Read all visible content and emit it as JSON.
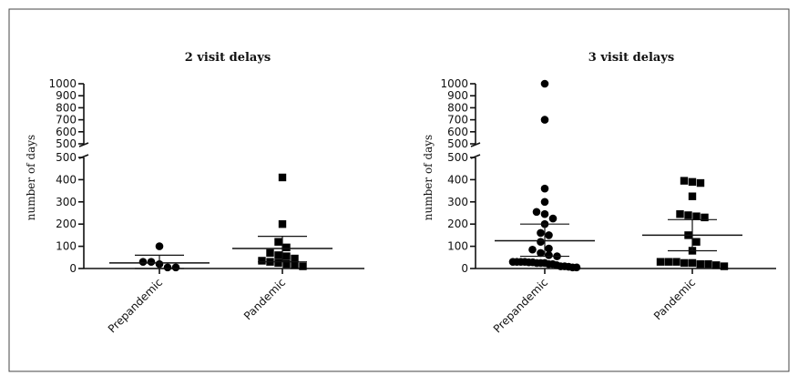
{
  "chart_data": [
    {
      "type": "scatter",
      "title": "2 visit delays",
      "ylabel": "number of days",
      "categories": [
        "Prepandemic",
        "Pandemic"
      ],
      "y_axis_break": {
        "lower_range": [
          0,
          500
        ],
        "upper_range": [
          500,
          1000
        ]
      },
      "lower_ticks": [
        0,
        100,
        200,
        300,
        400,
        500
      ],
      "upper_ticks": [
        500,
        600,
        700,
        800,
        900,
        1000
      ],
      "series": [
        {
          "category": "Prepandemic",
          "marker": "circle",
          "values": [
            100,
            30,
            20,
            5,
            5,
            30
          ],
          "mean": 25,
          "error": [
            0,
            60
          ]
        },
        {
          "category": "Pandemic",
          "marker": "square",
          "values": [
            410,
            200,
            120,
            95,
            70,
            60,
            55,
            45,
            35,
            30,
            25,
            20,
            15,
            10
          ],
          "mean": 90,
          "error": [
            30,
            145
          ]
        }
      ]
    },
    {
      "type": "scatter",
      "title": "3 visit delays",
      "ylabel": "number of days",
      "categories": [
        "Prepandemic",
        "Pandemic"
      ],
      "y_axis_break": {
        "lower_range": [
          0,
          500
        ],
        "upper_range": [
          500,
          1000
        ]
      },
      "lower_ticks": [
        0,
        100,
        200,
        300,
        400,
        500
      ],
      "upper_ticks": [
        500,
        600,
        700,
        800,
        900,
        1000
      ],
      "series": [
        {
          "category": "Prepandemic",
          "marker": "circle",
          "values": [
            1000,
            700,
            360,
            300,
            255,
            245,
            225,
            200,
            160,
            150,
            120,
            90,
            85,
            70,
            60,
            55,
            30,
            30,
            30,
            30,
            28,
            28,
            25,
            25,
            25,
            20,
            20,
            15,
            10,
            10,
            8,
            5,
            5
          ],
          "mean": 125,
          "error": [
            55,
            200
          ]
        },
        {
          "category": "Pandemic",
          "marker": "square",
          "values": [
            395,
            390,
            385,
            325,
            245,
            240,
            235,
            230,
            150,
            120,
            80,
            30,
            30,
            30,
            25,
            25,
            20,
            20,
            15,
            10
          ],
          "mean": 150,
          "error": [
            80,
            220
          ]
        }
      ]
    }
  ]
}
